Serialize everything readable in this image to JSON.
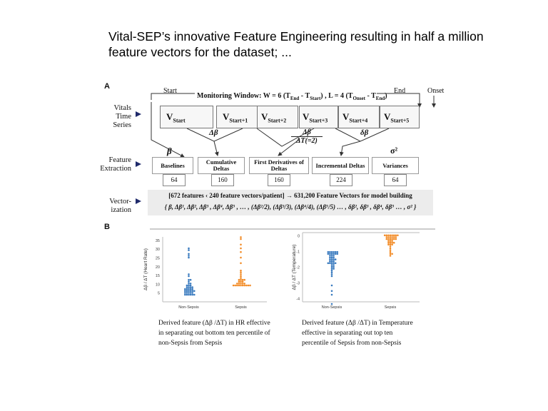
{
  "title": "Vital-SEP’s innovative Feature Engineering resulting in half a million feature vectors for the dataset; ...",
  "panel_a": {
    "label": "A",
    "start": "Start",
    "end": "End",
    "onset": "Onset",
    "window_text": "Monitoring Window: W = 6 (T",
    "window_full": "Monitoring Window: W = 6 (TEnd - TStart) , L = 4 (TOnset - TEnd)",
    "vitals_label": "Vitals Time Series",
    "vitals_label_lines": [
      "Vitals",
      "Time",
      "Series"
    ],
    "feature_label_lines": [
      "Feature",
      "Extraction"
    ],
    "vector_label_lines": [
      "Vector-",
      "ization"
    ],
    "vitals": [
      "V",
      "V",
      "V",
      "V",
      "V",
      "V"
    ],
    "vital_subs": [
      "Start",
      "Start+1",
      "Start+2",
      "Start+3",
      "Start+4",
      "Start+5"
    ],
    "symbols": {
      "delta_beta": "Δβ",
      "derivative_num": "Δβ",
      "derivative_den": "ΔT(=2)",
      "delta_beta_small": "δβ",
      "beta": "β",
      "sigma": "σ²"
    },
    "features": [
      {
        "name": "Baselines",
        "count": "64"
      },
      {
        "name": "Cumulative Deltas",
        "count": "160"
      },
      {
        "name": "First Derivatives of Deltas",
        "count": "160"
      },
      {
        "name": "Incremental Deltas",
        "count": "224"
      },
      {
        "name": "Variances",
        "count": "64"
      }
    ],
    "vector_line1": "[672 features ‹ 240 feature vectors/patient] → 631,200 Feature Vectors for model building",
    "vector_line2": "{ β, Δβ¹, Δβ², Δβ³ , Δβ⁴, Δβ⁵ , … , (Δβ²/2), (Δβ³/3), (Δβ⁴/4), (Δβ⁵/5) … , δβ², δβ³ , δβ⁴, δβ⁵ … , σ² }"
  },
  "panel_b": {
    "label": "B",
    "captions": [
      "Derived feature (Δβ /ΔT) in HR effective in separating out bottom ten percentile of non-Sepsis from Sepsis",
      "Derived feature (Δβ /ΔT) in Temperature effective in separating out top ten percentile of Sepsis from non-Sepsis"
    ],
    "caption_lines": [
      [
        "Derived feature (Δβ /ΔT) in HR effective",
        "in separating out bottom ten percentile of",
        "non-Sepsis from Sepsis"
      ],
      [
        "Derived feature (Δβ /ΔT) in Temperature",
        "effective in separating out top ten",
        "percentile of Sepsis from non-Sepsis"
      ]
    ]
  },
  "chart_data": [
    {
      "type": "scatter",
      "title": "",
      "xlabel": "",
      "ylabel": "Δβ / ΔT (Heart Rate)",
      "categories": [
        "Non-Sepsis",
        "Sepsis"
      ],
      "ylim": [
        0,
        37
      ],
      "yticks": [
        "5",
        "10",
        "15",
        "20",
        "25",
        "30",
        "35"
      ],
      "colors": [
        "#3a7bbf",
        "#f28c28"
      ],
      "series": [
        {
          "name": "Non-Sepsis",
          "values": [
            31,
            29,
            27,
            26,
            25,
            16,
            15,
            13,
            12,
            11,
            10,
            10,
            9,
            9,
            9,
            8,
            8,
            8,
            8,
            7,
            7,
            7,
            7,
            7,
            6,
            6,
            6,
            6,
            6,
            6,
            5,
            5,
            5,
            5,
            5,
            4,
            4,
            4,
            4,
            4,
            4
          ]
        },
        {
          "name": "Sepsis",
          "values": [
            37,
            36,
            33,
            30,
            28,
            25,
            22,
            18,
            17,
            16,
            15,
            14,
            13,
            13,
            12,
            12,
            11,
            11,
            11,
            10,
            10,
            10,
            10,
            10,
            9,
            9,
            9,
            9,
            9,
            9,
            9,
            9,
            9,
            9
          ]
        }
      ]
    },
    {
      "type": "scatter",
      "title": "",
      "xlabel": "",
      "ylabel": "Δβ / ΔT (Temperature)",
      "categories": [
        "Non-Sepsis",
        "Sepsis"
      ],
      "ylim": [
        -4.2,
        0.2
      ],
      "yticks": [
        "0",
        "-1",
        "-2",
        "-3",
        "-4"
      ],
      "colors": [
        "#3a7bbf",
        "#f28c28"
      ],
      "series": [
        {
          "name": "Non-Sepsis",
          "values": [
            -1.0,
            -1.0,
            -1.0,
            -1.0,
            -1.05,
            -1.05,
            -1.1,
            -1.1,
            -1.1,
            -1.15,
            -1.2,
            -1.2,
            -1.25,
            -1.3,
            -1.3,
            -1.35,
            -1.4,
            -1.4,
            -1.45,
            -1.5,
            -1.5,
            -1.55,
            -1.6,
            -1.6,
            -1.65,
            -1.7,
            -1.7,
            -1.75,
            -1.8,
            -1.8,
            -1.85,
            -1.9,
            -1.95,
            -2.0,
            -2.05,
            -2.1,
            -2.2,
            -2.3,
            -2.4,
            -2.6,
            -3.1,
            -3.5,
            -3.8,
            -4.3
          ]
        },
        {
          "name": "Sepsis",
          "values": [
            0.0,
            0.0,
            0.0,
            0.0,
            0.0,
            0.0,
            0.0,
            0.0,
            -0.05,
            -0.05,
            -0.05,
            -0.1,
            -0.1,
            -0.1,
            -0.15,
            -0.15,
            -0.2,
            -0.2,
            -0.25,
            -0.25,
            -0.3,
            -0.3,
            -0.35,
            -0.4,
            -0.4,
            -0.45,
            -0.5,
            -0.55,
            -0.6,
            -0.6,
            -0.7,
            -0.8,
            -0.9,
            -1.0,
            -1.1,
            -1.2,
            -1.3
          ]
        }
      ]
    }
  ]
}
